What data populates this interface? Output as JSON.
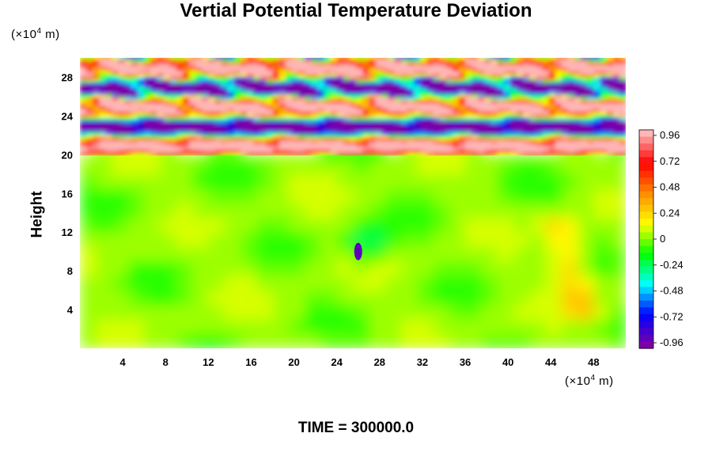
{
  "chart_data": {
    "type": "heatmap",
    "title": "Vertial Potential Temperature Deviation",
    "ylabel": "Height",
    "y_unit_prefix": "(×10",
    "y_unit_exp": "4",
    "y_unit_suffix": " m)",
    "x_unit_prefix": "(×10",
    "x_unit_exp": "4",
    "x_unit_suffix": " m)",
    "footer": "TIME = 300000.0",
    "xlim": [
      0,
      51
    ],
    "ylim": [
      0,
      30
    ],
    "x_ticks": [
      "4",
      "8",
      "12",
      "16",
      "20",
      "24",
      "28",
      "32",
      "36",
      "40",
      "44",
      "48"
    ],
    "y_ticks": [
      "4",
      "8",
      "12",
      "16",
      "20",
      "24",
      "28"
    ],
    "colorbar_labels": [
      "0.96",
      "0.72",
      "0.48",
      "0.24",
      "0",
      "-0.24",
      "-0.48",
      "-0.72",
      "-0.96"
    ],
    "colorbar_range": [
      -1.0,
      1.0
    ],
    "colorbar_levels": 32,
    "regions": [
      {
        "name": "lower-troposphere",
        "y_range": [
          0,
          20
        ],
        "typical_value": 0.0
      },
      {
        "name": "upper-layer-bands",
        "y_range": [
          20,
          30
        ],
        "value_range": [
          -1.0,
          1.0
        ]
      }
    ],
    "features": [
      {
        "name": "cold-anomaly",
        "x": 26,
        "y": 10,
        "value": -0.9
      },
      {
        "name": "warm-plume",
        "x": 45,
        "y": 8,
        "value": 0.3
      }
    ]
  },
  "colors": {
    "colormap": [
      "#7b00a8",
      "#0000ff",
      "#00ffff",
      "#00ff00",
      "#ffff00",
      "#ff8c00",
      "#ff0000",
      "#ffb6b6"
    ]
  }
}
